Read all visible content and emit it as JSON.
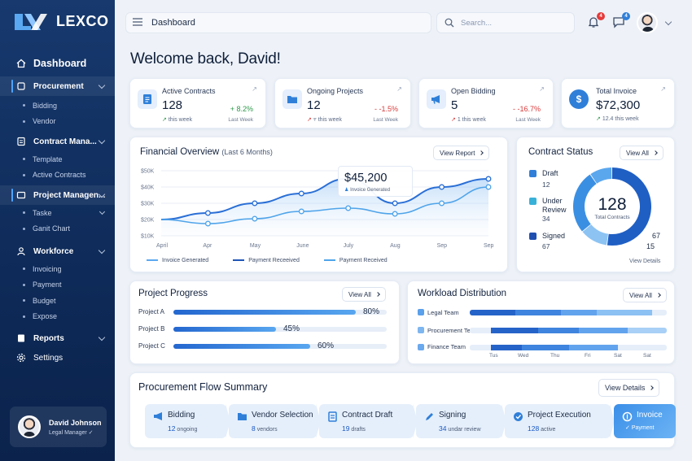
{
  "brand": {
    "name": "LEXCO"
  },
  "sidebar": {
    "items": [
      {
        "label": "Dashboard",
        "type": "active"
      },
      {
        "label": "Procurement",
        "type": "section-open"
      },
      {
        "label": "Bidding",
        "type": "sub"
      },
      {
        "label": "Vendor",
        "type": "sub"
      },
      {
        "label": "Contract Mana...",
        "type": "section"
      },
      {
        "label": "Template",
        "type": "sub"
      },
      {
        "label": "Active Contracts",
        "type": "sub"
      },
      {
        "label": "Project Managen...",
        "type": "section-open"
      },
      {
        "label": "Taske",
        "type": "sub"
      },
      {
        "label": "Ganit Chart",
        "type": "sub"
      },
      {
        "label": "Workforce",
        "type": "section"
      },
      {
        "label": "Invoicing",
        "type": "sub"
      },
      {
        "label": "Payment",
        "type": "sub"
      },
      {
        "label": "Budget",
        "type": "sub"
      },
      {
        "label": "Expose",
        "type": "sub"
      },
      {
        "label": "Reports",
        "type": "section"
      },
      {
        "label": "Settings",
        "type": "section"
      }
    ],
    "user": {
      "name": "David Johnson",
      "role": "Legal Manager"
    }
  },
  "header": {
    "title": "Dashboard",
    "search_placeholder": "Search...",
    "notifications_count": "4",
    "messages_count": "4"
  },
  "welcome": "Welcome back, David!",
  "kpis": [
    {
      "label": "Active Contracts",
      "value": "128",
      "sub": "this week",
      "change": "+ 8.2%",
      "change_color": "#2c9a4a",
      "period": "Last Week",
      "icon": "document-icon"
    },
    {
      "label": "Ongoing Projects",
      "value": "12",
      "sub": "⫧ this week",
      "change": "- -1.5%",
      "change_color": "#d93a3a",
      "period": "Last Week",
      "icon": "folder-icon"
    },
    {
      "label": "Open Bidding",
      "value": "5",
      "sub": "1 this week",
      "change": "- -16.7%",
      "change_color": "#d93a3a",
      "period": "Last Week",
      "icon": "megaphone-icon"
    },
    {
      "label": "Total Invoice",
      "value": "$72,300",
      "sub": "12.4 this week",
      "change": "",
      "change_color": "#2c9a4a",
      "period": "",
      "icon": "dollar-icon"
    }
  ],
  "financial": {
    "title": "Financial Overview",
    "subtitle": "(Last 6 Months)",
    "button": "View Report",
    "tooltip_value": "$45,200",
    "tooltip_label": "Invoice Generated",
    "legend": [
      "Invoice Generated",
      "Payment Receeived",
      "Payment Received"
    ]
  },
  "chart_data": {
    "type": "area",
    "x": [
      "April",
      "Apr",
      "May",
      "June",
      "July",
      "Aug",
      "Sep",
      "Sep"
    ],
    "y_ticks": [
      "$50K",
      "$40K",
      "$30K",
      "$20K",
      "$10K"
    ],
    "ylim": [
      10000,
      50000
    ],
    "series": [
      {
        "name": "Invoice Generated",
        "values": [
          20000,
          24000,
          30000,
          36000,
          45200,
          30000,
          40000,
          45000
        ]
      },
      {
        "name": "Payment Received",
        "values": [
          20000,
          17500,
          20500,
          25000,
          27000,
          23500,
          30000,
          40000
        ]
      }
    ]
  },
  "contract_status": {
    "title": "Contract Status",
    "button": "View All",
    "total": "128",
    "total_label": "Total Contracts",
    "items": [
      {
        "label": "Draft",
        "count": "12",
        "color": "#2f7fd9"
      },
      {
        "label": "Under Review",
        "count": "34",
        "color": "#38b1d8"
      },
      {
        "label": "Signed",
        "count": "67",
        "color": "#1f5fc4"
      }
    ],
    "ring_values": [
      67,
      15,
      34,
      12
    ],
    "ring_labels": [
      "67",
      "15"
    ],
    "details": "View Details"
  },
  "project_progress": {
    "title": "Project Progress",
    "button": "View All",
    "rows": [
      {
        "label": "Project A",
        "value": 80,
        "text": "80%"
      },
      {
        "label": "Project B",
        "value": 45,
        "text": "45%"
      },
      {
        "label": "Project C",
        "value": 60,
        "text": "60%"
      }
    ]
  },
  "workload": {
    "title": "Workload Distribution",
    "button": "View All",
    "rows": [
      {
        "label": "Legal Team",
        "color": "#5aa0ea"
      },
      {
        "label": "Procurement Team",
        "color": "#7eb6f0"
      },
      {
        "label": "Finance Team",
        "color": "#6aa9ee"
      }
    ],
    "days": [
      "Tus",
      "Wed",
      "Thu",
      "Fri",
      "Sat",
      "Sat"
    ]
  },
  "procurement_flow": {
    "title": "Procurement Flow Summary",
    "button": "View Details",
    "steps": [
      {
        "title": "Bidding",
        "value": "12",
        "unit": "ongoing",
        "icon": "megaphone-icon"
      },
      {
        "title": "Vendor Selection",
        "value": "8",
        "unit": "vendors",
        "icon": "folder-icon"
      },
      {
        "title": "Contract Draft",
        "value": "19",
        "unit": "drafts",
        "icon": "document-icon"
      },
      {
        "title": "Signing",
        "value": "34",
        "unit": "undar review",
        "icon": "pen-icon"
      },
      {
        "title": "Project Execution",
        "value": "128",
        "unit": "active",
        "icon": "check-circle-icon"
      },
      {
        "title": "Invoice",
        "value": "",
        "unit": "Payment",
        "icon": "invoice-icon"
      }
    ]
  }
}
